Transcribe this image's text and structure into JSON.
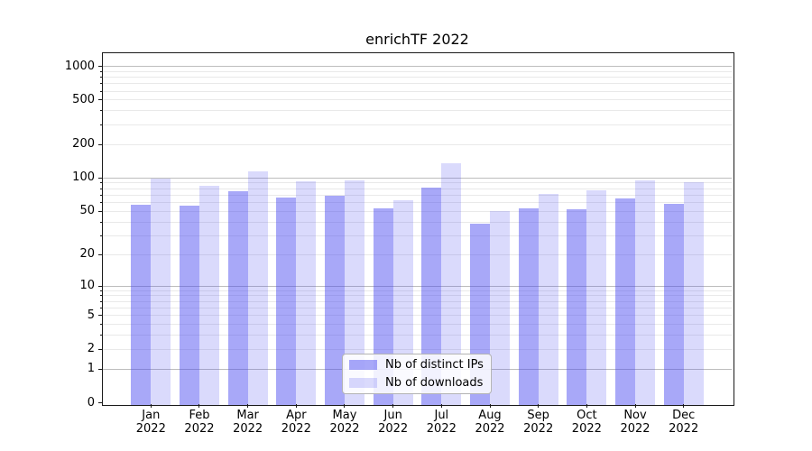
{
  "figure": {
    "title": "enrichTF 2022"
  },
  "chart_data": {
    "type": "bar",
    "title": "enrichTF 2022",
    "categories": [
      "Jan",
      "Feb",
      "Mar",
      "Apr",
      "May",
      "Jun",
      "Jul",
      "Aug",
      "Sep",
      "Oct",
      "Nov",
      "Dec"
    ],
    "category_year": "2022",
    "series": [
      {
        "name": "Nb of distinct IPs",
        "color": "rgba(70,70,240,0.47)",
        "values": [
          60,
          58,
          79,
          69,
          72,
          55,
          85,
          40,
          55,
          54,
          68,
          61
        ]
      },
      {
        "name": "Nb of downloads",
        "color": "rgba(70,70,240,0.2)",
        "values": [
          102,
          88,
          119,
          97,
          99,
          65,
          140,
          52,
          75,
          80,
          98,
          95
        ]
      }
    ],
    "xlabel": "",
    "ylabel": "",
    "y_scale": "log1p",
    "y_ticks": [
      0,
      1,
      2,
      5,
      10,
      20,
      50,
      100,
      200,
      500,
      1000
    ],
    "ylim": [
      0,
      1311
    ],
    "grid": true,
    "legend_position": "lower center"
  },
  "colors": {
    "grid_major": "#bdbdbd",
    "grid_minor": "#e9e9e9",
    "axis": "#1a1a1a"
  }
}
